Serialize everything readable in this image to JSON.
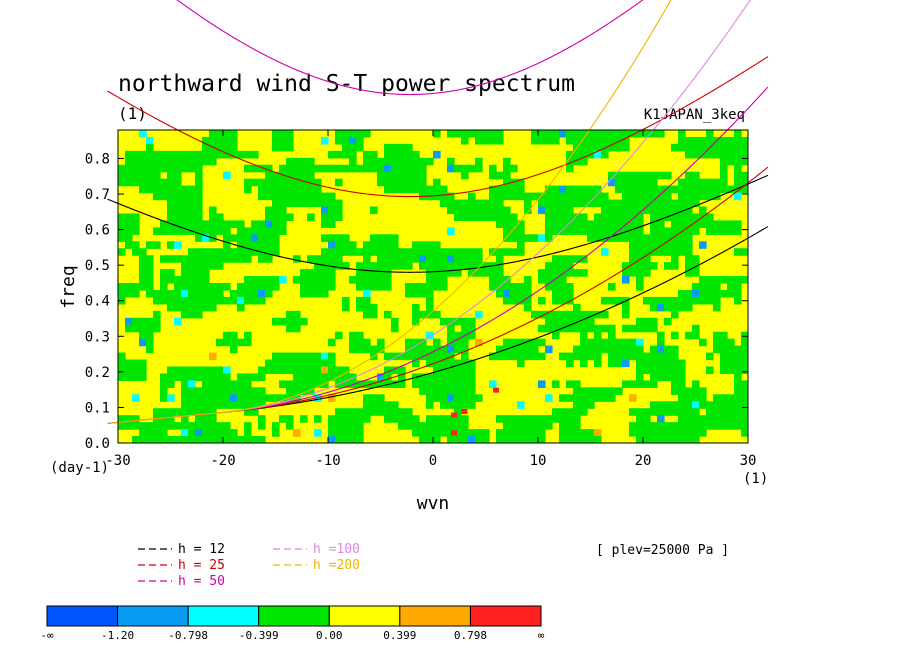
{
  "chart_data": {
    "type": "contour",
    "title": "northward wind S-T power spectrum",
    "units_label": "(1)",
    "run_label": "K1JAPAN_3keq",
    "xlabel": "wvn",
    "ylabel": "freq",
    "x_unit_label": "(1)",
    "y_unit_label": "(day-1)",
    "xlim": [
      -30,
      30
    ],
    "ylim": [
      0.0,
      0.88
    ],
    "x_ticks": [
      -30,
      -20,
      -10,
      0,
      10,
      20,
      30
    ],
    "x_tick_labels": [
      "-30",
      "-20",
      "-10",
      "0",
      "10",
      "20",
      "30"
    ],
    "y_ticks": [
      0.0,
      0.1,
      0.2,
      0.3,
      0.4,
      0.5,
      0.6,
      0.7,
      0.8
    ],
    "y_tick_labels": [
      "0.0",
      "0.1",
      "0.2",
      "0.3",
      "0.4",
      "0.5",
      "0.6",
      "0.7",
      "0.8"
    ],
    "level_note": "[ plev=25000 Pa ]",
    "dispersion_curves": [
      {
        "h": 12,
        "label": "h = 12",
        "color": "#000000"
      },
      {
        "h": 25,
        "label": "h = 25",
        "color": "#cc0000"
      },
      {
        "h": 50,
        "label": "h = 50",
        "color": "#cc00aa"
      },
      {
        "h": 100,
        "label": "h =100",
        "color": "#dd88dd"
      },
      {
        "h": 200,
        "label": "h =200",
        "color": "#f0b400"
      }
    ],
    "color_bar": {
      "colors": [
        "#0055ff",
        "#0a9cf2",
        "#00ffff",
        "#00e600",
        "#ffff00",
        "#ffaa00",
        "#ff2020"
      ],
      "labels": [
        "-∞",
        "-1.20",
        "-0.798",
        "-0.399",
        "0.00",
        "0.399",
        "0.798",
        "∞"
      ]
    },
    "field_levels": {
      "green_fraction": 0.5,
      "yellow_fraction": 0.47,
      "sparse_colors": [
        "#00ffff",
        "#0a9cf2",
        "#ffaa00",
        "#ff2020"
      ]
    }
  }
}
